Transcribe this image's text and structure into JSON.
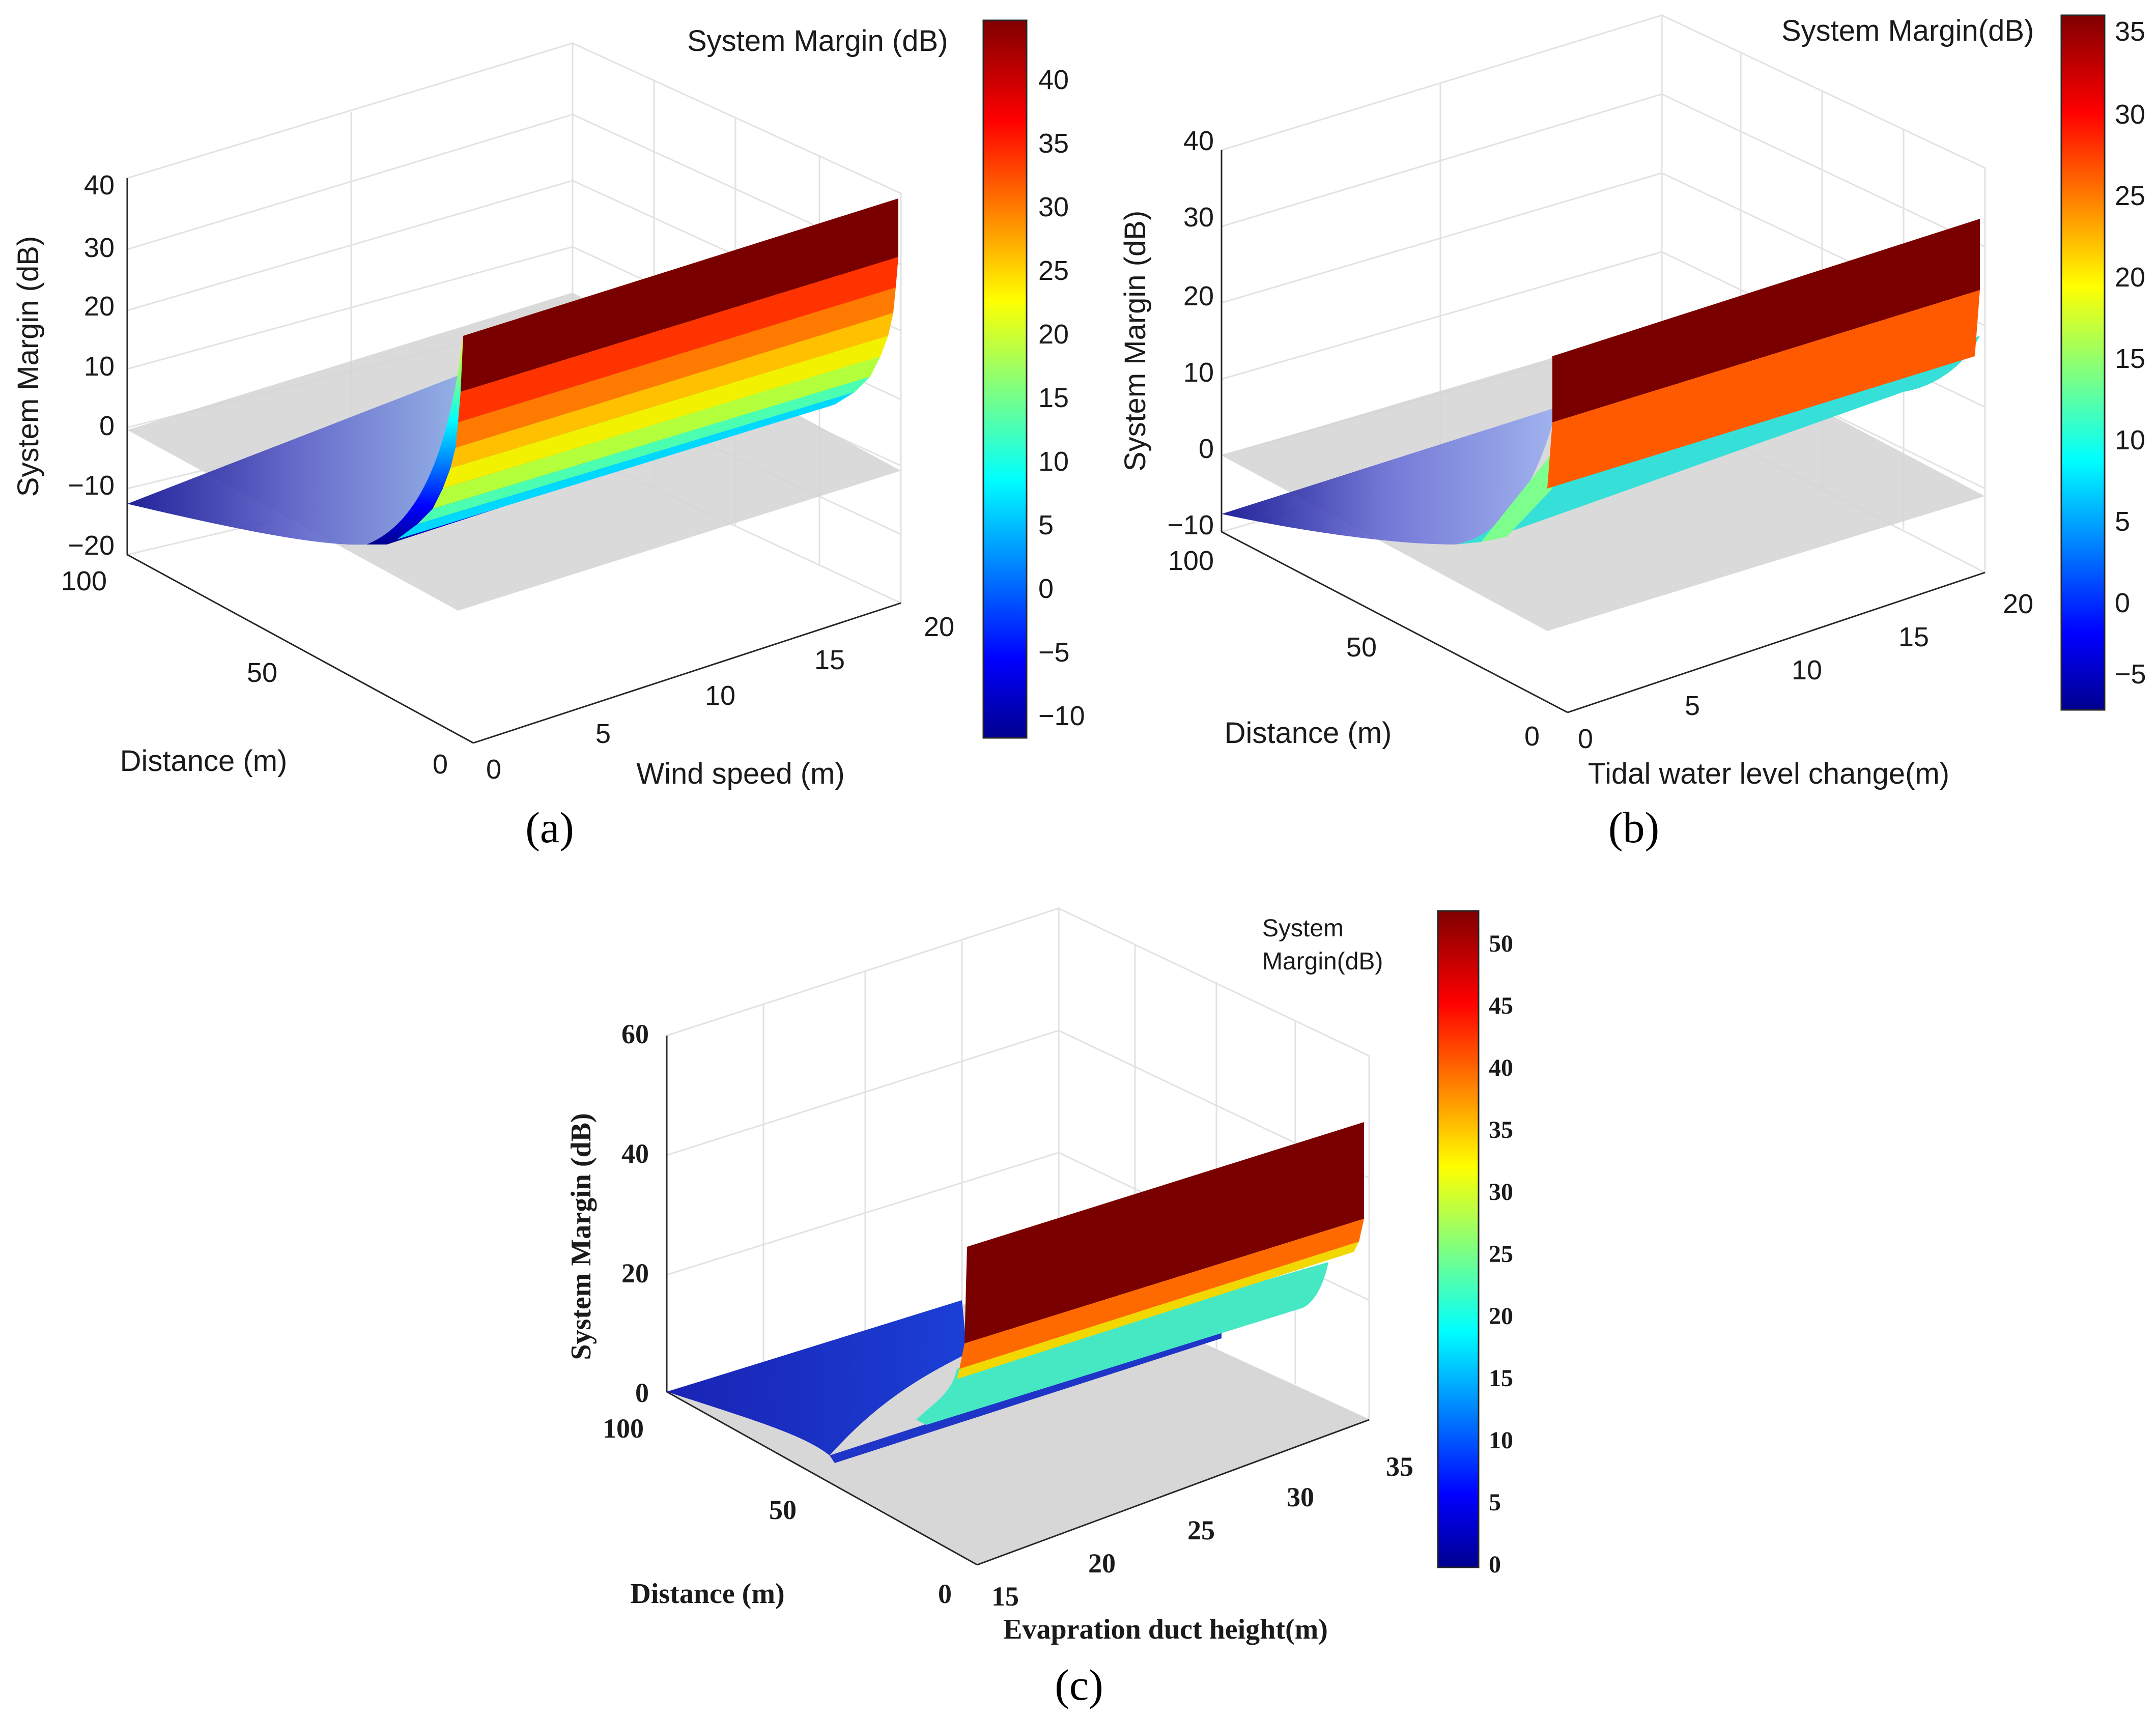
{
  "chart_data": [
    {
      "type": "surface",
      "panel_label": "(a)",
      "xlabel": "Wind speed (m)",
      "ylabel": "Distance (m)",
      "zlabel": "System Margin (dB)",
      "colorbar_title": "System Margin (dB)",
      "x_ticks": [
        "0",
        "5",
        "10",
        "15",
        "20"
      ],
      "y_ticks": [
        "0",
        "50",
        "100"
      ],
      "z_ticks": [
        "−20",
        "−10",
        "0",
        "10",
        "20",
        "30",
        "40"
      ],
      "colorbar_ticks": [
        "−10",
        "−5",
        "0",
        "5",
        "10",
        "15",
        "20",
        "25",
        "30",
        "35",
        "40"
      ],
      "xlim": [
        0,
        20
      ],
      "ylim": [
        0,
        100
      ],
      "zlim": [
        -20,
        40
      ],
      "clim": [
        -12,
        45
      ],
      "reference_plane_z": 0,
      "surface_profile": {
        "distance": [
          100,
          75,
          50,
          40,
          30,
          20,
          10,
          5,
          0
        ],
        "margin": [
          -12,
          -16,
          -18,
          -17,
          -12,
          -2,
          12,
          25,
          45
        ]
      }
    },
    {
      "type": "surface",
      "panel_label": "(b)",
      "xlabel": "Tidal water level change(m)",
      "ylabel": "Distance (m)",
      "zlabel": "System Margin (dB)",
      "colorbar_title": "System Margin(dB)",
      "x_ticks": [
        "0",
        "5",
        "10",
        "15",
        "20"
      ],
      "y_ticks": [
        "0",
        "50",
        "100"
      ],
      "z_ticks": [
        "−10",
        "0",
        "10",
        "20",
        "30",
        "40"
      ],
      "colorbar_ticks": [
        "−5",
        "0",
        "5",
        "10",
        "15",
        "20",
        "25",
        "30",
        "35"
      ],
      "xlim": [
        0,
        20
      ],
      "ylim": [
        0,
        100
      ],
      "zlim": [
        -10,
        40
      ],
      "clim": [
        -7,
        36
      ],
      "reference_plane_z": 0,
      "surface_profile": {
        "distance": [
          100,
          75,
          50,
          40,
          30,
          20,
          10,
          5,
          0
        ],
        "margin": [
          -8,
          -10,
          -11,
          -10,
          -8,
          -2,
          5,
          27,
          36
        ]
      }
    },
    {
      "type": "surface",
      "panel_label": "(c)",
      "xlabel": "Evapration duct height(m)",
      "ylabel": "Distance (m)",
      "zlabel": "System Margin (dB)",
      "colorbar_title_lines": [
        "System",
        "Margin(dB)"
      ],
      "x_ticks": [
        "15",
        "20",
        "25",
        "30",
        "35"
      ],
      "y_ticks": [
        "0",
        "50",
        "100"
      ],
      "z_ticks": [
        "0",
        "20",
        "40",
        "60"
      ],
      "colorbar_ticks": [
        "0",
        "5",
        "10",
        "15",
        "20",
        "25",
        "30",
        "35",
        "40",
        "45",
        "50"
      ],
      "xlim": [
        15,
        35
      ],
      "ylim": [
        0,
        100
      ],
      "zlim": [
        0,
        60
      ],
      "clim": [
        0,
        52
      ],
      "reference_plane_z": 0,
      "surface_profile": {
        "distance": [
          100,
          75,
          50,
          30,
          20,
          10,
          5,
          0
        ],
        "margin": [
          0,
          0,
          0,
          0,
          2,
          12,
          25,
          50
        ]
      }
    }
  ],
  "colors": {
    "plane": "#d3d3d3",
    "grid": "#e2e2e2",
    "axis": "#262626"
  }
}
